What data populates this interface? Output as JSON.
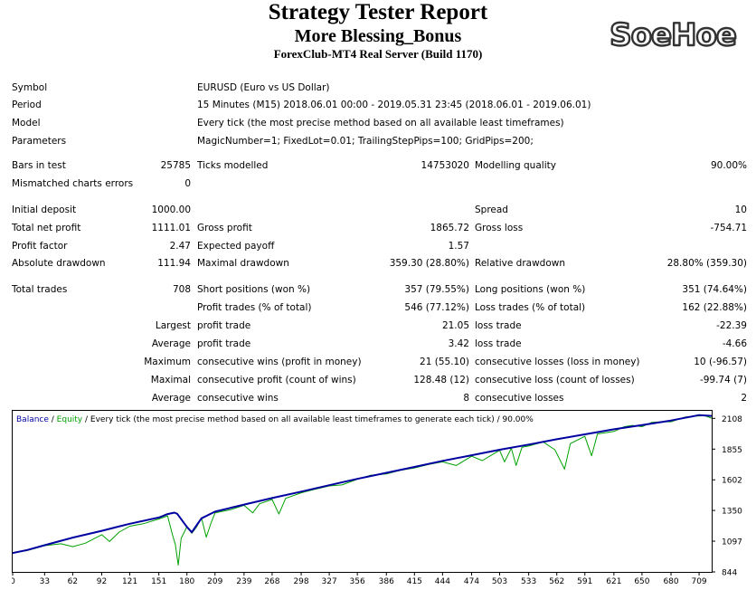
{
  "header": {
    "title": "Strategy Tester Report",
    "subtitle": "More Blessing_Bonus",
    "server": "ForexClub-MT4 Real Server (Build 1170)",
    "logo_text": "SoeHoe"
  },
  "info": {
    "symbol_label": "Symbol",
    "symbol_value": "EURUSD (Euro vs US Dollar)",
    "period_label": "Period",
    "period_value": "15 Minutes (M15) 2018.06.01 00:00 - 2019.05.31 23:45 (2018.06.01 - 2019.06.01)",
    "model_label": "Model",
    "model_value": "Every tick (the most precise method based on all available least timeframes)",
    "parameters_label": "Parameters",
    "parameters_value": "MagicNumber=1; FixedLot=0.01; TrailingStepPips=100; GridPips=200;"
  },
  "stats": {
    "bars_label": "Bars in test",
    "bars_value": "25785",
    "ticks_label": "Ticks modelled",
    "ticks_value": "14753020",
    "quality_label": "Modelling quality",
    "quality_value": "90.00%",
    "mismatched_label": "Mismatched charts errors",
    "mismatched_value": "0",
    "deposit_label": "Initial deposit",
    "deposit_value": "1000.00",
    "spread_label": "Spread",
    "spread_value": "10",
    "net_profit_label": "Total net profit",
    "net_profit_value": "1111.01",
    "gross_profit_label": "Gross profit",
    "gross_profit_value": "1865.72",
    "gross_loss_label": "Gross loss",
    "gross_loss_value": "-754.71",
    "profit_factor_label": "Profit factor",
    "profit_factor_value": "2.47",
    "expected_payoff_label": "Expected payoff",
    "expected_payoff_value": "1.57",
    "abs_dd_label": "Absolute drawdown",
    "abs_dd_value": "111.94",
    "max_dd_label": "Maximal drawdown",
    "max_dd_value": "359.30 (28.80%)",
    "rel_dd_label": "Relative drawdown",
    "rel_dd_value": "28.80% (359.30)",
    "total_trades_label": "Total trades",
    "total_trades_value": "708",
    "short_label": "Short positions (won %)",
    "short_value": "357 (79.55%)",
    "long_label": "Long positions (won %)",
    "long_value": "351 (74.64%)",
    "profit_trades_label": "Profit trades (% of total)",
    "profit_trades_value": "546 (77.12%)",
    "loss_trades_label": "Loss trades (% of total)",
    "loss_trades_value": "162 (22.88%)",
    "largest_label": "Largest",
    "largest_profit_label": "profit trade",
    "largest_profit_value": "21.05",
    "largest_loss_label": "loss trade",
    "largest_loss_value": "-22.39",
    "average_label": "Average",
    "average_profit_label": "profit trade",
    "average_profit_value": "3.42",
    "average_loss_label": "loss trade",
    "average_loss_value": "-4.66",
    "maximum_label": "Maximum",
    "max_cons_wins_label": "consecutive wins (profit in money)",
    "max_cons_wins_value": "21 (55.10)",
    "max_cons_losses_label": "consecutive losses (loss in money)",
    "max_cons_losses_value": "10 (-96.57)",
    "maximal_label": "Maximal",
    "maximal_profit_label": "consecutive profit (count of wins)",
    "maximal_profit_value": "128.48 (12)",
    "maximal_loss_label": "consecutive loss (count of losses)",
    "maximal_loss_value": "-99.74 (7)",
    "average2_label": "Average",
    "avg_cons_wins_label": "consecutive wins",
    "avg_cons_wins_value": "8",
    "avg_cons_losses_label": "consecutive losses",
    "avg_cons_losses_value": "2"
  },
  "colors": {
    "balance": "#0000a0",
    "equity": "#00a000",
    "axis": "#000000"
  },
  "chart_data": {
    "type": "line",
    "legend": {
      "balance_label": "Balance",
      "sep1": " / ",
      "equity_label": "Equity",
      "rest": " / Every tick (the most precise method based on all available least timeframes to generate each tick) / 90.00%"
    },
    "x_ticks": [
      0,
      33,
      62,
      92,
      121,
      151,
      180,
      209,
      239,
      268,
      298,
      327,
      356,
      386,
      415,
      444,
      474,
      503,
      533,
      562,
      591,
      621,
      650,
      680,
      709
    ],
    "y_ticks": [
      844,
      1097,
      1350,
      1602,
      1855,
      2108
    ],
    "xlim": [
      0,
      722
    ],
    "ylim": [
      844,
      2170
    ],
    "series": [
      {
        "name": "Balance",
        "points": [
          [
            0,
            1000
          ],
          [
            15,
            1024
          ],
          [
            33,
            1064
          ],
          [
            62,
            1126
          ],
          [
            92,
            1182
          ],
          [
            121,
            1240
          ],
          [
            151,
            1292
          ],
          [
            160,
            1320
          ],
          [
            167,
            1332
          ],
          [
            170,
            1322
          ],
          [
            180,
            1214
          ],
          [
            185,
            1170
          ],
          [
            190,
            1228
          ],
          [
            195,
            1285
          ],
          [
            209,
            1340
          ],
          [
            239,
            1398
          ],
          [
            268,
            1452
          ],
          [
            298,
            1505
          ],
          [
            327,
            1558
          ],
          [
            356,
            1610
          ],
          [
            386,
            1660
          ],
          [
            415,
            1708
          ],
          [
            444,
            1758
          ],
          [
            474,
            1804
          ],
          [
            503,
            1850
          ],
          [
            533,
            1892
          ],
          [
            562,
            1936
          ],
          [
            591,
            1976
          ],
          [
            621,
            2018
          ],
          [
            650,
            2052
          ],
          [
            680,
            2090
          ],
          [
            709,
            2135
          ],
          [
            722,
            2128
          ]
        ]
      },
      {
        "name": "Equity",
        "points": [
          [
            0,
            998
          ],
          [
            15,
            1020
          ],
          [
            33,
            1060
          ],
          [
            50,
            1076
          ],
          [
            62,
            1052
          ],
          [
            75,
            1080
          ],
          [
            92,
            1150
          ],
          [
            100,
            1094
          ],
          [
            110,
            1172
          ],
          [
            121,
            1220
          ],
          [
            135,
            1240
          ],
          [
            151,
            1280
          ],
          [
            160,
            1305
          ],
          [
            165,
            1150
          ],
          [
            168,
            1070
          ],
          [
            171,
            900
          ],
          [
            174,
            1120
          ],
          [
            180,
            1216
          ],
          [
            185,
            1162
          ],
          [
            190,
            1214
          ],
          [
            195,
            1290
          ],
          [
            200,
            1130
          ],
          [
            205,
            1250
          ],
          [
            209,
            1330
          ],
          [
            225,
            1356
          ],
          [
            239,
            1392
          ],
          [
            248,
            1330
          ],
          [
            255,
            1405
          ],
          [
            268,
            1440
          ],
          [
            275,
            1320
          ],
          [
            282,
            1450
          ],
          [
            298,
            1495
          ],
          [
            310,
            1520
          ],
          [
            327,
            1552
          ],
          [
            340,
            1560
          ],
          [
            356,
            1606
          ],
          [
            370,
            1640
          ],
          [
            386,
            1650
          ],
          [
            400,
            1680
          ],
          [
            415,
            1700
          ],
          [
            430,
            1730
          ],
          [
            444,
            1750
          ],
          [
            458,
            1720
          ],
          [
            474,
            1796
          ],
          [
            485,
            1760
          ],
          [
            503,
            1845
          ],
          [
            508,
            1750
          ],
          [
            515,
            1862
          ],
          [
            520,
            1720
          ],
          [
            526,
            1870
          ],
          [
            533,
            1880
          ],
          [
            548,
            1914
          ],
          [
            560,
            1850
          ],
          [
            570,
            1690
          ],
          [
            576,
            1900
          ],
          [
            591,
            1960
          ],
          [
            598,
            1800
          ],
          [
            604,
            1980
          ],
          [
            621,
            2000
          ],
          [
            632,
            2040
          ],
          [
            640,
            2050
          ],
          [
            650,
            2040
          ],
          [
            660,
            2075
          ],
          [
            670,
            2080
          ],
          [
            680,
            2080
          ],
          [
            695,
            2120
          ],
          [
            709,
            2128
          ],
          [
            715,
            2130
          ],
          [
            722,
            2110
          ]
        ]
      }
    ]
  }
}
